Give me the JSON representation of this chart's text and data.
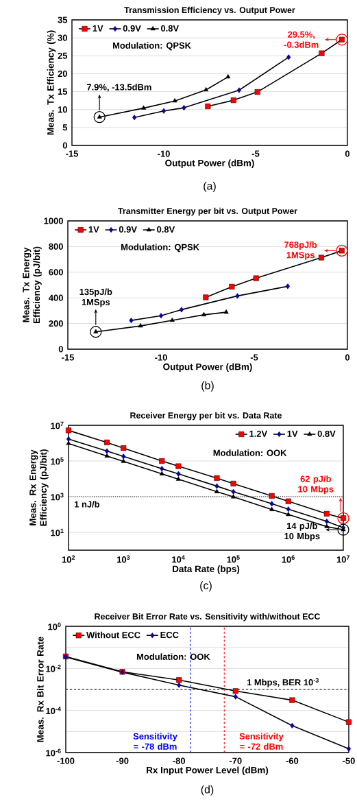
{
  "chart_data": [
    {
      "type": "line",
      "title": "Transmission Efficiency vs. Output Power",
      "xlabel": "Output Power (dBm)",
      "ylabel": "Meas. Tx Efficiency (%)",
      "xlim": [
        -15,
        0
      ],
      "xticks": [
        -15,
        -10,
        -5,
        0
      ],
      "ylim": [
        0,
        35
      ],
      "yticks": [
        0,
        5,
        10,
        15,
        20,
        25,
        30,
        35
      ],
      "grid": "y",
      "legend": "top left",
      "annotations": [
        "Modulation: QPSK",
        {
          "text": "7.9%, -13.5dBm",
          "x": -13.5,
          "y": 7.9
        },
        {
          "text": "29.5%, -0.3dBm",
          "x": -0.3,
          "y": 29.5
        },
        "(a)"
      ],
      "series": [
        {
          "name": "1V",
          "color": "#ff0000",
          "marker": "square",
          "x": [
            -7.6,
            -6.2,
            -4.9,
            -1.4,
            -0.3
          ],
          "values": [
            10.9,
            12.6,
            14.9,
            25.7,
            29.5
          ]
        },
        {
          "name": "0.9V",
          "color": "#0000cc",
          "marker": "diamond",
          "x": [
            -11.6,
            -10.0,
            -8.9,
            -5.9,
            -3.2
          ],
          "values": [
            7.8,
            9.6,
            10.5,
            15.4,
            24.6
          ]
        },
        {
          "name": "0.8V",
          "color": "#000000",
          "marker": "triangle",
          "x": [
            -13.5,
            -11.1,
            -9.4,
            -7.7,
            -6.5
          ],
          "values": [
            7.9,
            10.4,
            12.4,
            15.5,
            19.1
          ]
        }
      ]
    },
    {
      "type": "line",
      "title": "Transmitter Energy per bit vs. Output Power",
      "xlabel": "Output Power (dBm)",
      "ylabel": "Meas. Tx Energy Efficiency (pJ/bit)",
      "xlim": [
        -15,
        0
      ],
      "xticks": [
        -15,
        -10,
        -5,
        0
      ],
      "ylim": [
        0,
        1000
      ],
      "yticks": [
        0,
        200,
        400,
        600,
        800,
        1000
      ],
      "grid": "y",
      "legend": "top left",
      "annotations": [
        "Modulation: QPSK",
        {
          "text": "135pJ/b 1MSps",
          "x": -13.5,
          "y": 135
        },
        {
          "text": "768pJ/b 1MSps",
          "x": -0.3,
          "y": 768
        },
        "(b)"
      ],
      "series": [
        {
          "name": "1V",
          "color": "#ff0000",
          "marker": "square",
          "x": [
            -7.6,
            -6.2,
            -4.9,
            -1.4,
            -0.3
          ],
          "values": [
            404,
            487,
            553,
            714,
            768
          ]
        },
        {
          "name": "0.9V",
          "color": "#0000cc",
          "marker": "diamond",
          "x": [
            -11.6,
            -10.0,
            -8.9,
            -5.9,
            -3.2
          ],
          "values": [
            224,
            261,
            308,
            415,
            490
          ]
        },
        {
          "name": "0.8V",
          "color": "#000000",
          "marker": "triangle",
          "x": [
            -13.5,
            -11.1,
            -9.4,
            -7.7,
            -6.5
          ],
          "values": [
            135,
            181,
            225,
            268,
            288
          ]
        }
      ]
    },
    {
      "type": "line",
      "title": "Receiver Energy per bit vs. Data Rate",
      "xlabel": "Data Rate (bps)",
      "ylabel": "Meas. Rx Energy Efficiency (pJ/bit)",
      "log": "xy",
      "xlim": [
        100,
        10000000
      ],
      "xticks": [
        {
          "value": 100,
          "label": "10$^{2}$"
        },
        {
          "value": 1000,
          "label": "10$^{3}$"
        },
        {
          "value": 10000,
          "label": "10$^{4}$"
        },
        {
          "value": 100000,
          "label": "10$^{5}$"
        },
        {
          "value": 1000000,
          "label": "10$^{6}$"
        },
        {
          "value": 10000000,
          "label": "10$^{7}$"
        }
      ],
      "ylim": [
        1,
        10000000
      ],
      "yticks": [
        {
          "value": 10,
          "label": "10$^{1}$"
        },
        {
          "value": 1000,
          "label": "10$^{3}$"
        },
        {
          "value": 100000,
          "label": "10$^{5}$"
        },
        {
          "value": 10000000,
          "label": "10$^{7}$"
        }
      ],
      "grid": "y",
      "legend": "top right",
      "ref_lines": [
        {
          "axis": "y",
          "value": 1000,
          "label": "1 nJ/b",
          "color": "#000000",
          "line_style": "dotted"
        }
      ],
      "annotations": [
        "Modulation: OOK",
        {
          "text": "62 pJ/b 10 Mbps",
          "x": 10000000,
          "y": 62
        },
        {
          "text": "14 pJ/b 10 Mbps",
          "x": 10000000,
          "y": 14
        },
        "(c)"
      ],
      "x": [
        100,
        500,
        1000,
        5000,
        10000,
        50000,
        100000,
        500000,
        1000000,
        5000000,
        10000000
      ],
      "series": [
        {
          "name": "1.2V",
          "color": "#ff0000",
          "marker": "square",
          "values": [
            5200000,
            1100000,
            530000,
            100000,
            51000,
            11000,
            5400,
            1100,
            550,
            110,
            62
          ]
        },
        {
          "name": "1V",
          "color": "#0000cc",
          "marker": "diamond",
          "values": [
            1700000,
            360000,
            180000,
            37000,
            19000,
            3900,
            1900,
            400,
            200,
            41,
            18
          ]
        },
        {
          "name": "0.8V",
          "color": "#000000",
          "marker": "triangle",
          "values": [
            960000,
            190000,
            95000,
            19000,
            9500,
            1900,
            970,
            190,
            100,
            21,
            14
          ]
        }
      ]
    },
    {
      "type": "line",
      "title": "Receiver Bit Error Rate vs. Sensitivity with/without ECC",
      "xlabel": "Rx Input Power Level (dBm)",
      "ylabel": "Meas. Rx Bit Error Rate",
      "log": "y",
      "xlim": [
        -100,
        -50
      ],
      "xticks": [
        -100,
        -90,
        -80,
        -70,
        -60,
        -50
      ],
      "ylim": [
        1e-06,
        1
      ],
      "yticks": [
        {
          "value": 1,
          "label": "10$^{0}$"
        },
        {
          "value": 0.1,
          "label": null
        },
        {
          "value": 0.01,
          "label": "10$^{-2}$"
        },
        {
          "value": 0.001,
          "label": null
        },
        {
          "value": 0.0001,
          "label": "10$^{-4}$"
        },
        {
          "value": 1e-05,
          "label": null
        },
        {
          "value": 1e-06,
          "label": "10$^{-6}$"
        }
      ],
      "grid": "y",
      "legend": "top left",
      "ref_lines": [
        {
          "axis": "y",
          "value": 0.001,
          "label": "1 Mbps, BER 10$^{-3}$",
          "color": "#000000",
          "line_style": "dashed"
        },
        {
          "axis": "x",
          "value": -78,
          "label": "Sensitivity = -78 dBm",
          "color": "#0000ff",
          "line_style": "dashed"
        },
        {
          "axis": "x",
          "value": -72,
          "label": "Sensitivity = -72 dBm",
          "color": "#ff0000",
          "line_style": "dashed"
        }
      ],
      "annotations": [
        "Modulation: OOK",
        "(d)"
      ],
      "x": [
        -100,
        -90,
        -80,
        -70,
        -60,
        -50
      ],
      "series": [
        {
          "name": "Without ECC",
          "color": "#ff0000",
          "marker": "square",
          "values": [
            0.037,
            0.0069,
            0.0028,
            0.00084,
            0.00031,
            2.8e-05
          ]
        },
        {
          "name": "ECC",
          "color": "#0000cc",
          "marker": "diamond",
          "values": [
            0.035,
            0.0066,
            0.0016,
            0.00045,
            1.9e-05,
            1.5e-06
          ]
        }
      ]
    }
  ]
}
